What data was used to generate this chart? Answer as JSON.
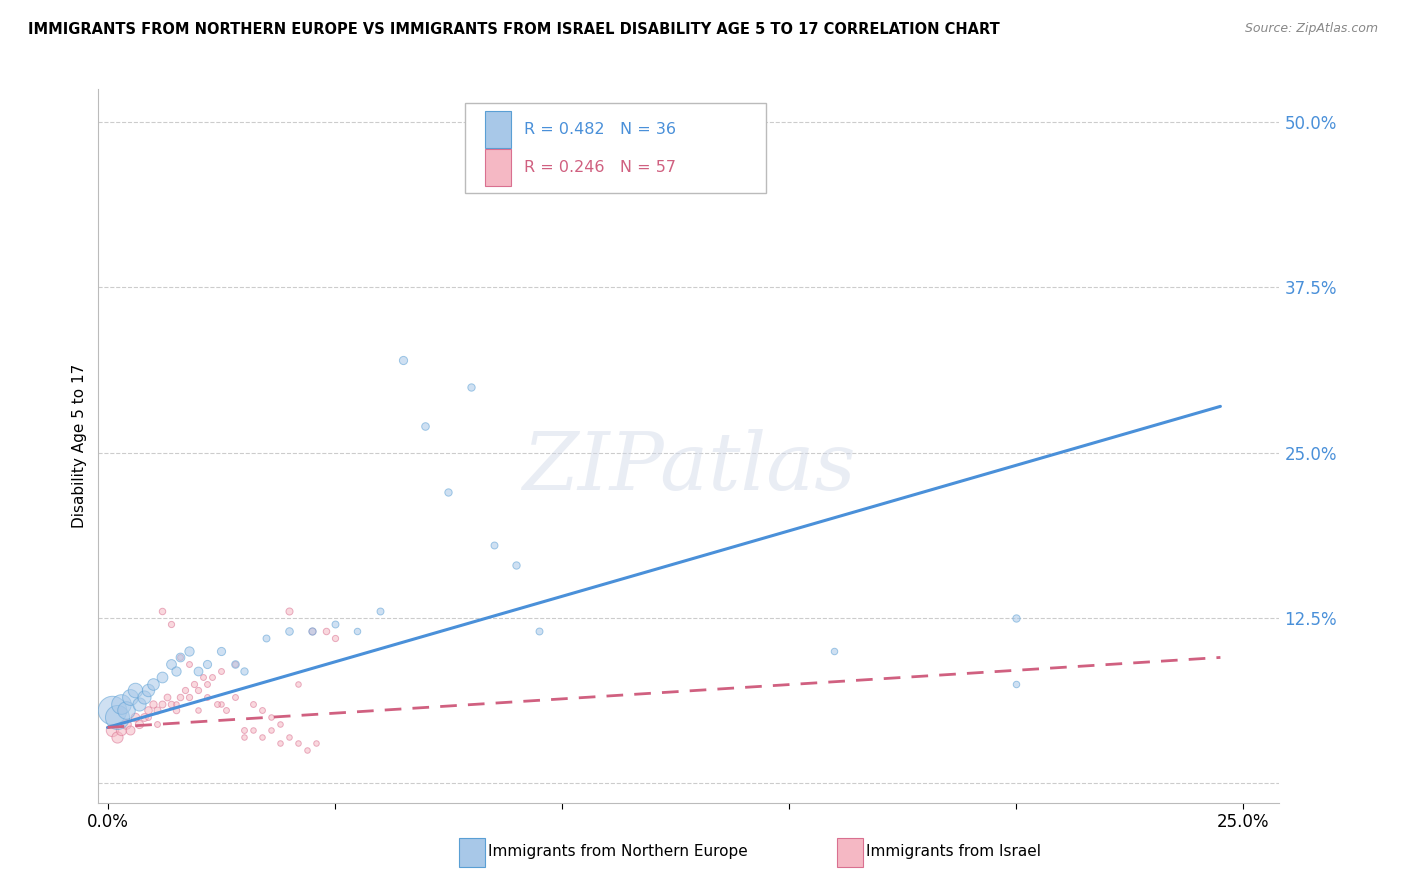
{
  "title": "IMMIGRANTS FROM NORTHERN EUROPE VS IMMIGRANTS FROM ISRAEL DISABILITY AGE 5 TO 17 CORRELATION CHART",
  "source": "Source: ZipAtlas.com",
  "ylabel": "Disability Age 5 to 17",
  "legend_label1": "Immigrants from Northern Europe",
  "legend_label2": "Immigrants from Israel",
  "R1": 0.482,
  "N1": 36,
  "R2": 0.246,
  "N2": 57,
  "color_blue": "#a8c8e8",
  "color_blue_edge": "#5a9fd4",
  "color_blue_line": "#4a90d9",
  "color_pink": "#f5b8c4",
  "color_pink_edge": "#d97090",
  "color_pink_line": "#d06080",
  "color_grid": "#cccccc",
  "watermark": "ZIPatlas",
  "blue_points": [
    [
      0.001,
      0.055,
      420
    ],
    [
      0.002,
      0.05,
      300
    ],
    [
      0.003,
      0.06,
      200
    ],
    [
      0.004,
      0.055,
      160
    ],
    [
      0.005,
      0.065,
      130
    ],
    [
      0.006,
      0.07,
      110
    ],
    [
      0.007,
      0.06,
      90
    ],
    [
      0.008,
      0.065,
      90
    ],
    [
      0.009,
      0.07,
      80
    ],
    [
      0.01,
      0.075,
      70
    ],
    [
      0.012,
      0.08,
      60
    ],
    [
      0.014,
      0.09,
      50
    ],
    [
      0.015,
      0.085,
      45
    ],
    [
      0.016,
      0.095,
      40
    ],
    [
      0.018,
      0.1,
      45
    ],
    [
      0.02,
      0.085,
      40
    ],
    [
      0.022,
      0.09,
      35
    ],
    [
      0.025,
      0.1,
      35
    ],
    [
      0.028,
      0.09,
      30
    ],
    [
      0.03,
      0.085,
      28
    ],
    [
      0.035,
      0.11,
      25
    ],
    [
      0.04,
      0.115,
      30
    ],
    [
      0.045,
      0.115,
      28
    ],
    [
      0.05,
      0.12,
      25
    ],
    [
      0.055,
      0.115,
      22
    ],
    [
      0.06,
      0.13,
      25
    ],
    [
      0.065,
      0.32,
      35
    ],
    [
      0.07,
      0.27,
      30
    ],
    [
      0.075,
      0.22,
      28
    ],
    [
      0.08,
      0.3,
      28
    ],
    [
      0.085,
      0.18,
      25
    ],
    [
      0.09,
      0.165,
      28
    ],
    [
      0.095,
      0.115,
      25
    ],
    [
      0.16,
      0.1,
      22
    ],
    [
      0.2,
      0.075,
      22
    ],
    [
      0.2,
      0.125,
      28
    ]
  ],
  "pink_points": [
    [
      0.001,
      0.04,
      80
    ],
    [
      0.002,
      0.035,
      65
    ],
    [
      0.003,
      0.04,
      55
    ],
    [
      0.004,
      0.045,
      48
    ],
    [
      0.005,
      0.04,
      42
    ],
    [
      0.006,
      0.05,
      38
    ],
    [
      0.007,
      0.045,
      35
    ],
    [
      0.008,
      0.05,
      32
    ],
    [
      0.009,
      0.055,
      30
    ],
    [
      0.01,
      0.06,
      28
    ],
    [
      0.011,
      0.055,
      26
    ],
    [
      0.012,
      0.06,
      25
    ],
    [
      0.013,
      0.065,
      24
    ],
    [
      0.014,
      0.06,
      22
    ],
    [
      0.015,
      0.055,
      22
    ],
    [
      0.016,
      0.065,
      22
    ],
    [
      0.017,
      0.07,
      20
    ],
    [
      0.018,
      0.065,
      20
    ],
    [
      0.019,
      0.075,
      20
    ],
    [
      0.02,
      0.07,
      20
    ],
    [
      0.021,
      0.08,
      18
    ],
    [
      0.022,
      0.075,
      18
    ],
    [
      0.023,
      0.08,
      18
    ],
    [
      0.025,
      0.085,
      18
    ],
    [
      0.028,
      0.09,
      18
    ],
    [
      0.03,
      0.04,
      18
    ],
    [
      0.032,
      0.06,
      18
    ],
    [
      0.034,
      0.055,
      18
    ],
    [
      0.036,
      0.05,
      16
    ],
    [
      0.038,
      0.045,
      16
    ],
    [
      0.04,
      0.13,
      26
    ],
    [
      0.042,
      0.075,
      16
    ],
    [
      0.045,
      0.115,
      24
    ],
    [
      0.048,
      0.115,
      22
    ],
    [
      0.05,
      0.11,
      20
    ],
    [
      0.025,
      0.06,
      16
    ],
    [
      0.02,
      0.055,
      16
    ],
    [
      0.015,
      0.06,
      16
    ],
    [
      0.012,
      0.13,
      22
    ],
    [
      0.014,
      0.12,
      20
    ],
    [
      0.016,
      0.095,
      18
    ],
    [
      0.018,
      0.09,
      18
    ],
    [
      0.022,
      0.065,
      18
    ],
    [
      0.024,
      0.06,
      18
    ],
    [
      0.026,
      0.055,
      18
    ],
    [
      0.028,
      0.065,
      18
    ],
    [
      0.03,
      0.035,
      16
    ],
    [
      0.032,
      0.04,
      16
    ],
    [
      0.034,
      0.035,
      16
    ],
    [
      0.036,
      0.04,
      16
    ],
    [
      0.038,
      0.03,
      16
    ],
    [
      0.04,
      0.035,
      16
    ],
    [
      0.042,
      0.03,
      16
    ],
    [
      0.044,
      0.025,
      16
    ],
    [
      0.046,
      0.03,
      16
    ],
    [
      0.009,
      0.05,
      18
    ],
    [
      0.011,
      0.045,
      18
    ]
  ],
  "blue_line_x": [
    0.0,
    0.245
  ],
  "blue_line_y": [
    0.042,
    0.285
  ],
  "pink_line_x": [
    0.0,
    0.245
  ],
  "pink_line_y": [
    0.042,
    0.095
  ],
  "xlim": [
    -0.002,
    0.258
  ],
  "ylim": [
    -0.015,
    0.525
  ],
  "x_ticks": [
    0.0,
    0.05,
    0.1,
    0.15,
    0.2,
    0.25
  ],
  "y_ticks": [
    0.0,
    0.125,
    0.25,
    0.375,
    0.5
  ]
}
